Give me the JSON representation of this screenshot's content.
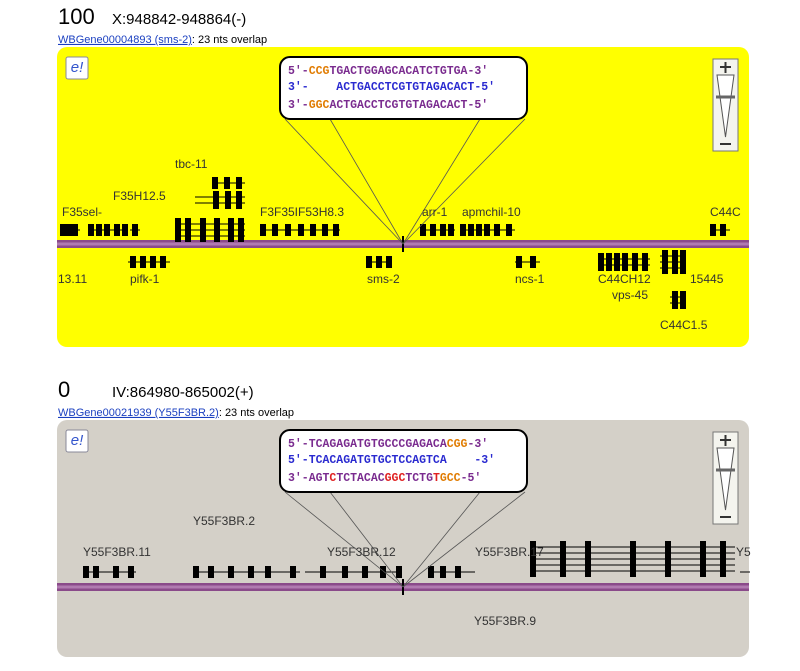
{
  "panels": [
    {
      "score": "100",
      "location": "X:948842-948864(-)",
      "gene_link": "WBGene00004893 (sms-2)",
      "overlap": ": 23 nts overlap",
      "sequences": [
        {
          "segments": [
            {
              "text": "5'-",
              "color": "#7a2b8f"
            },
            {
              "text": "CCG",
              "color": "#e07b00"
            },
            {
              "text": "TGACTGGAGCACATCTGTGA-3'",
              "color": "#7a2b8f"
            }
          ]
        },
        {
          "segments": [
            {
              "text": "3'-    ACTGACCTCGTGTAGACACT-5'",
              "color": "#2a2ad0"
            }
          ]
        },
        {
          "segments": [
            {
              "text": "3'-",
              "color": "#7a2b8f"
            },
            {
              "text": "GGC",
              "color": "#e07b00"
            },
            {
              "text": "ACTGACCTCGTGTAGACACT-5'",
              "color": "#7a2b8f"
            }
          ]
        }
      ],
      "gene_labels": [
        "F35sel-",
        "F35H12.5",
        "tbc-11",
        "F3F35IF53H8.3",
        "arr-1",
        "apmchil-10",
        "C44C",
        "13.11",
        "pifk-1",
        "sms-2",
        "ncs-1",
        "C44CH12",
        "15445",
        "vps-45",
        "C44C1.5"
      ]
    },
    {
      "score": "0",
      "location": "IV:864980-865002(+)",
      "gene_link": "WBGene00021939 (Y55F3BR.2)",
      "overlap": ": 23 nts overlap",
      "sequences": [
        {
          "segments": [
            {
              "text": "5'-TCAGAGATGTGCCCGAGACA",
              "color": "#7a2b8f"
            },
            {
              "text": "CGG",
              "color": "#e07b00"
            },
            {
              "text": "-3'",
              "color": "#7a2b8f"
            }
          ]
        },
        {
          "segments": [
            {
              "text": "5'-TCACAGATGTGCTCCAGTCA    -3'",
              "color": "#2a2ad0"
            }
          ]
        },
        {
          "segments": [
            {
              "text": "3'-AGT",
              "color": "#7a2b8f"
            },
            {
              "text": "C",
              "color": "#e02020"
            },
            {
              "text": "TCTACAC",
              "color": "#7a2b8f"
            },
            {
              "text": "GGC",
              "color": "#e02020"
            },
            {
              "text": "TCTG",
              "color": "#7a2b8f"
            },
            {
              "text": "T",
              "color": "#e02020"
            },
            {
              "text": "GCC",
              "color": "#e07b00"
            },
            {
              "text": "-5'",
              "color": "#7a2b8f"
            }
          ]
        }
      ],
      "gene_labels": [
        "Y55F3BR.2",
        "Y55F3BR.11",
        "Y55F3BR.12",
        "Y55F3BR.17",
        "Y5",
        "Y55F3BR.9"
      ]
    }
  ]
}
